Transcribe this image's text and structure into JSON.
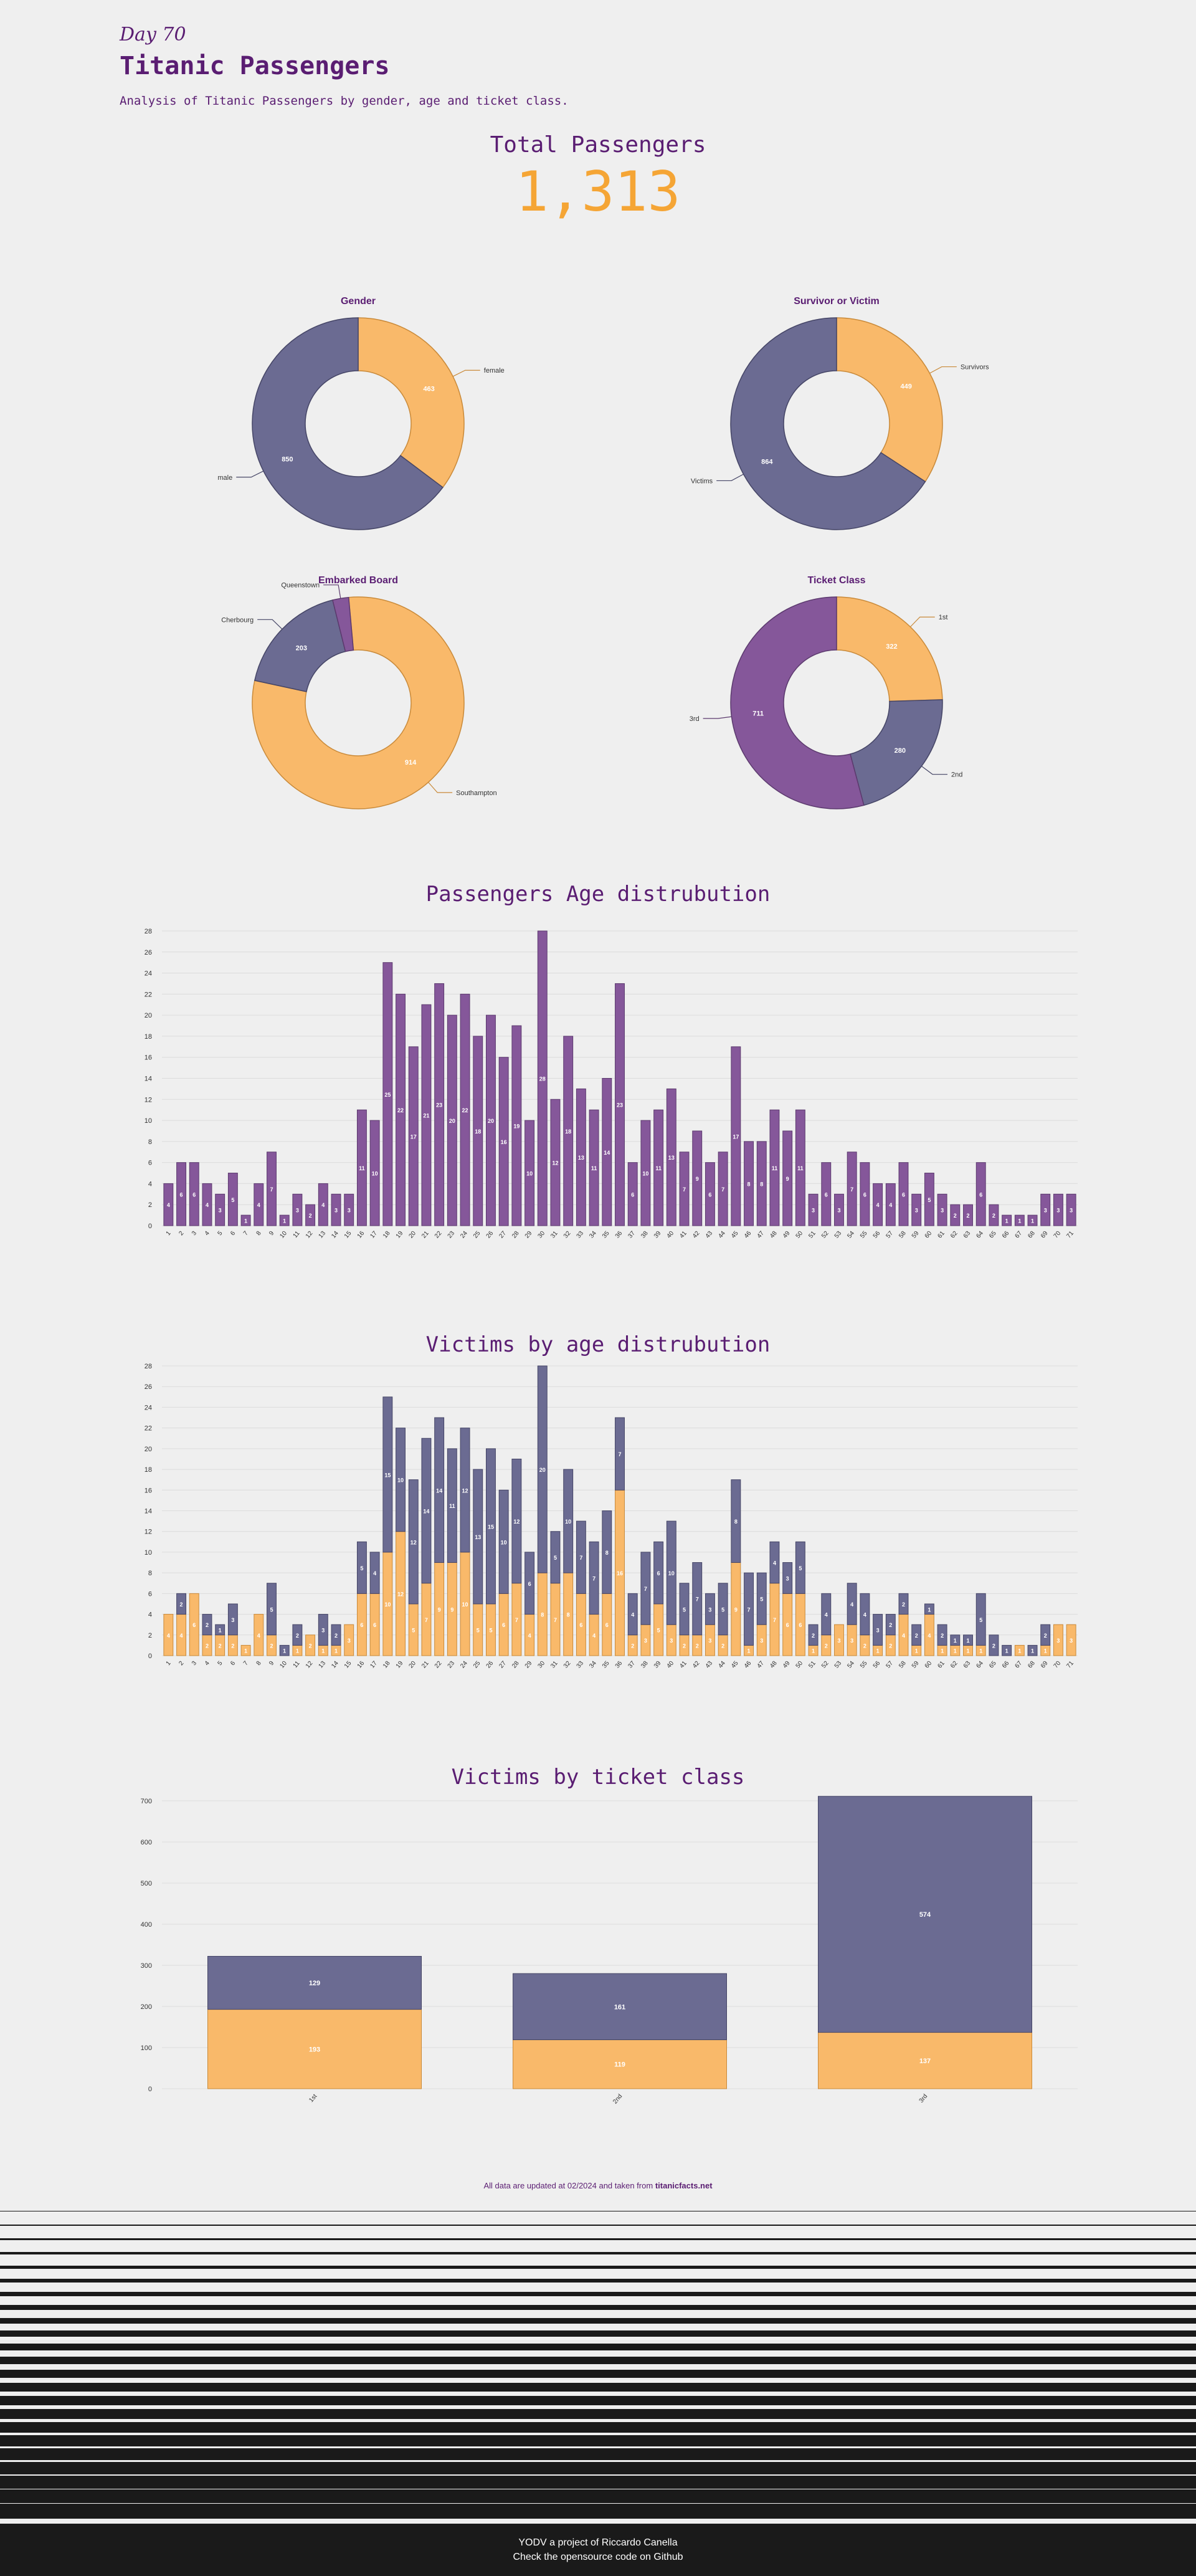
{
  "header": {
    "day": "Day 70",
    "title": "Titanic Passengers",
    "subtitle": "Analysis of Titanic Passengers by gender, age and ticket class."
  },
  "total": {
    "label": "Total Passengers",
    "value": "1,313"
  },
  "colors": {
    "purple": "#5a1d72",
    "orange": "#f9b96a",
    "orange_stroke": "#c98a3a",
    "slate": "#6b6b92",
    "slate_stroke": "#454566",
    "violet": "#85579a",
    "accent": "#f5a535"
  },
  "chart_data": [
    {
      "type": "pie",
      "donut": true,
      "title": "Gender",
      "slices": [
        {
          "label": "female",
          "value": 463,
          "color": "orange"
        },
        {
          "label": "male",
          "value": 850,
          "color": "slate"
        }
      ]
    },
    {
      "type": "pie",
      "donut": true,
      "title": "Survivor or Victim",
      "slices": [
        {
          "label": "Survivors",
          "value": 449,
          "color": "orange"
        },
        {
          "label": "Victims",
          "value": 864,
          "color": "slate"
        }
      ]
    },
    {
      "type": "pie",
      "donut": true,
      "title": "Embarked Board",
      "slices": [
        {
          "label": "Southampton",
          "value": 914,
          "color": "orange"
        },
        {
          "label": "Cherbourg",
          "value": 203,
          "color": "slate"
        },
        {
          "label": "Queenstown",
          "value": 28,
          "color": "violet"
        }
      ]
    },
    {
      "type": "pie",
      "donut": true,
      "title": "Ticket Class",
      "slices": [
        {
          "label": "1st",
          "value": 322,
          "color": "orange"
        },
        {
          "label": "2nd",
          "value": 280,
          "color": "slate"
        },
        {
          "label": "3rd",
          "value": 711,
          "color": "violet"
        }
      ]
    },
    {
      "type": "bar",
      "title": "Passengers Age distrubution",
      "ylim": [
        0,
        28
      ],
      "yticks": [
        0,
        2,
        4,
        6,
        8,
        10,
        12,
        14,
        16,
        18,
        20,
        22,
        24,
        26,
        28
      ],
      "categories": [
        "1",
        "2",
        "3",
        "4",
        "5",
        "6",
        "7",
        "8",
        "9",
        "10",
        "11",
        "12",
        "13",
        "14",
        "15",
        "16",
        "17",
        "18",
        "19",
        "20",
        "21",
        "22",
        "23",
        "24",
        "25",
        "26",
        "27",
        "28",
        "29",
        "30",
        "31",
        "32",
        "33",
        "34",
        "35",
        "36",
        "37",
        "38",
        "39",
        "40",
        "41",
        "42",
        "43",
        "44",
        "45",
        "46",
        "47",
        "48",
        "49",
        "50",
        "51",
        "52",
        "53",
        "54",
        "55",
        "56",
        "57",
        "58",
        "59",
        "60",
        "61",
        "62",
        "63",
        "64",
        "65",
        "66",
        "67",
        "68",
        "69",
        "70",
        "71"
      ],
      "values": [
        4,
        6,
        6,
        4,
        3,
        5,
        1,
        4,
        7,
        1,
        3,
        2,
        4,
        3,
        3,
        11,
        10,
        25,
        22,
        17,
        21,
        23,
        20,
        22,
        18,
        20,
        16,
        19,
        10,
        28,
        12,
        18,
        13,
        11,
        14,
        23,
        6,
        10,
        11,
        13,
        7,
        9,
        6,
        7,
        17,
        8,
        8,
        11,
        9,
        11,
        3,
        6,
        3,
        7,
        6,
        4,
        4,
        6,
        3,
        5,
        3,
        2,
        2,
        6,
        2,
        1,
        1,
        1,
        3,
        3,
        3
      ]
    },
    {
      "type": "bar",
      "stacked": true,
      "title": "Victims by age distrubution",
      "ylim": [
        0,
        28
      ],
      "yticks": [
        0,
        2,
        4,
        6,
        8,
        10,
        12,
        14,
        16,
        18,
        20,
        22,
        24,
        26,
        28
      ],
      "categories": [
        "1",
        "2",
        "3",
        "4",
        "5",
        "6",
        "7",
        "8",
        "9",
        "10",
        "11",
        "12",
        "13",
        "14",
        "15",
        "16",
        "17",
        "18",
        "19",
        "20",
        "21",
        "22",
        "23",
        "24",
        "25",
        "26",
        "27",
        "28",
        "29",
        "30",
        "31",
        "32",
        "33",
        "34",
        "35",
        "36",
        "37",
        "38",
        "39",
        "40",
        "41",
        "42",
        "43",
        "44",
        "45",
        "46",
        "47",
        "48",
        "49",
        "50",
        "51",
        "52",
        "53",
        "54",
        "55",
        "56",
        "57",
        "58",
        "59",
        "60",
        "61",
        "62",
        "63",
        "64",
        "65",
        "66",
        "67",
        "68",
        "69",
        "70",
        "71"
      ],
      "series": [
        {
          "name": "Survivors",
          "color": "orange",
          "values": [
            4,
            4,
            6,
            2,
            2,
            2,
            1,
            4,
            2,
            0,
            1,
            2,
            1,
            1,
            3,
            6,
            6,
            10,
            12,
            5,
            7,
            9,
            9,
            10,
            5,
            5,
            6,
            7,
            4,
            8,
            7,
            8,
            6,
            4,
            6,
            16,
            2,
            3,
            5,
            3,
            2,
            2,
            3,
            2,
            9,
            1,
            3,
            7,
            6,
            6,
            1,
            2,
            3,
            3,
            2,
            1,
            2,
            4,
            1,
            4,
            1,
            1,
            1,
            1,
            0,
            0,
            1,
            0,
            1,
            3,
            3
          ]
        },
        {
          "name": "Victims",
          "color": "slate",
          "values": [
            0,
            2,
            0,
            2,
            1,
            3,
            0,
            0,
            5,
            1,
            2,
            0,
            3,
            2,
            0,
            5,
            4,
            15,
            10,
            12,
            14,
            14,
            11,
            12,
            13,
            15,
            10,
            12,
            6,
            20,
            5,
            10,
            7,
            7,
            8,
            7,
            4,
            7,
            6,
            10,
            5,
            7,
            3,
            5,
            8,
            7,
            5,
            4,
            3,
            5,
            2,
            4,
            0,
            4,
            4,
            3,
            2,
            2,
            2,
            1,
            2,
            1,
            1,
            5,
            2,
            1,
            0,
            1,
            2,
            0,
            0
          ]
        }
      ]
    },
    {
      "type": "bar",
      "stacked": true,
      "title": "Victims by ticket class",
      "ylim": [
        0,
        700
      ],
      "yticks": [
        0,
        100,
        200,
        300,
        400,
        500,
        600,
        700
      ],
      "categories": [
        "1st",
        "2nd",
        "3rd"
      ],
      "series": [
        {
          "name": "Survivors",
          "color": "orange",
          "values": [
            193,
            119,
            137
          ]
        },
        {
          "name": "Victims",
          "color": "slate",
          "values": [
            129,
            161,
            574
          ]
        }
      ]
    }
  ],
  "footnote": {
    "prefix": "All data are updated at 02/2024 and taken from",
    "source": "titanicfacts.net"
  },
  "footer": {
    "line1": "YODV a project of Riccardo Canella",
    "line2": "Check the opensource code on Github"
  }
}
